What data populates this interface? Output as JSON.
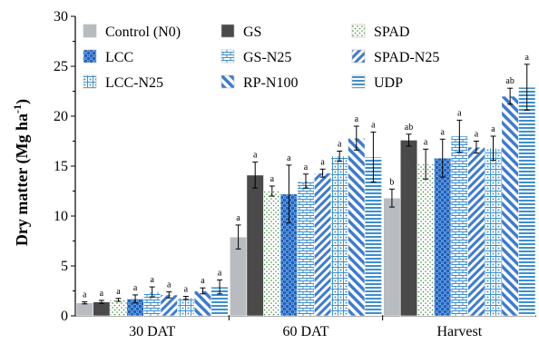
{
  "chart_data": {
    "type": "bar",
    "title": "",
    "xlabel": "",
    "ylabel": {
      "main": "Dry matter",
      "unit_open": "(Mg ha",
      "unit_sup": "-1",
      "unit_close": ")"
    },
    "ylim": [
      0,
      30
    ],
    "yticks": [
      "0",
      "5",
      "10",
      "15",
      "20",
      "25",
      "30"
    ],
    "grid": false,
    "legend_position": "top-left, inside plot, 3 columns",
    "categories": [
      "30 DAT",
      "60 DAT",
      "Harvest"
    ],
    "series": [
      {
        "name": "Control (N0)",
        "pattern": "solid-gray",
        "color": "#b8bcc0",
        "values": [
          1.3,
          7.9,
          11.8
        ],
        "errors": [
          0.1,
          1.2,
          0.9
        ],
        "labels": [
          "a",
          "a",
          "b"
        ]
      },
      {
        "name": "GS",
        "pattern": "solid-dark",
        "color": "#4a4a4a",
        "values": [
          1.4,
          14.1,
          17.6
        ],
        "errors": [
          0.15,
          1.3,
          0.6
        ],
        "labels": [
          "a",
          "a",
          "ab"
        ]
      },
      {
        "name": "SPAD",
        "pattern": "dots-green",
        "color": "#3a8a3a",
        "values": [
          1.6,
          12.5,
          15.2
        ],
        "errors": [
          0.15,
          0.5,
          1.5
        ],
        "labels": [
          "a",
          "a",
          "a"
        ]
      },
      {
        "name": "LCC",
        "pattern": "checker-blue",
        "color": "#2e6fc8",
        "values": [
          1.7,
          12.2,
          15.8
        ],
        "errors": [
          0.4,
          2.9,
          1.9
        ],
        "labels": [
          "a",
          "a",
          "a"
        ]
      },
      {
        "name": "GS-N25",
        "pattern": "brick-blue",
        "color": "#3c8fd0",
        "values": [
          2.4,
          13.5,
          18.0
        ],
        "errors": [
          0.5,
          0.7,
          1.6
        ],
        "labels": [
          "a",
          "a",
          "a"
        ]
      },
      {
        "name": "SPAD-N25",
        "pattern": "diag-blue",
        "color": "#3d7bd0",
        "values": [
          2.1,
          14.3,
          16.9
        ],
        "errors": [
          0.3,
          0.4,
          0.6
        ],
        "labels": [
          "a",
          "a",
          "a"
        ]
      },
      {
        "name": "LCC-N25",
        "pattern": "grid-blue",
        "color": "#3c8fd0",
        "values": [
          1.8,
          16.0,
          16.8
        ],
        "errors": [
          0.15,
          0.5,
          1.2
        ],
        "labels": [
          "a",
          "a",
          "a"
        ]
      },
      {
        "name": "RP-N100",
        "pattern": "backdiag-blue",
        "color": "#3d7bd0",
        "values": [
          2.5,
          17.8,
          22.0
        ],
        "errors": [
          0.3,
          1.2,
          0.8
        ],
        "labels": [
          "a",
          "a",
          "ab"
        ]
      },
      {
        "name": "UDP",
        "pattern": "hlines-blue",
        "color": "#3c8fd0",
        "values": [
          2.9,
          15.9,
          22.9
        ],
        "errors": [
          0.7,
          2.5,
          2.3
        ],
        "labels": [
          "a",
          "a",
          "a"
        ]
      }
    ]
  }
}
